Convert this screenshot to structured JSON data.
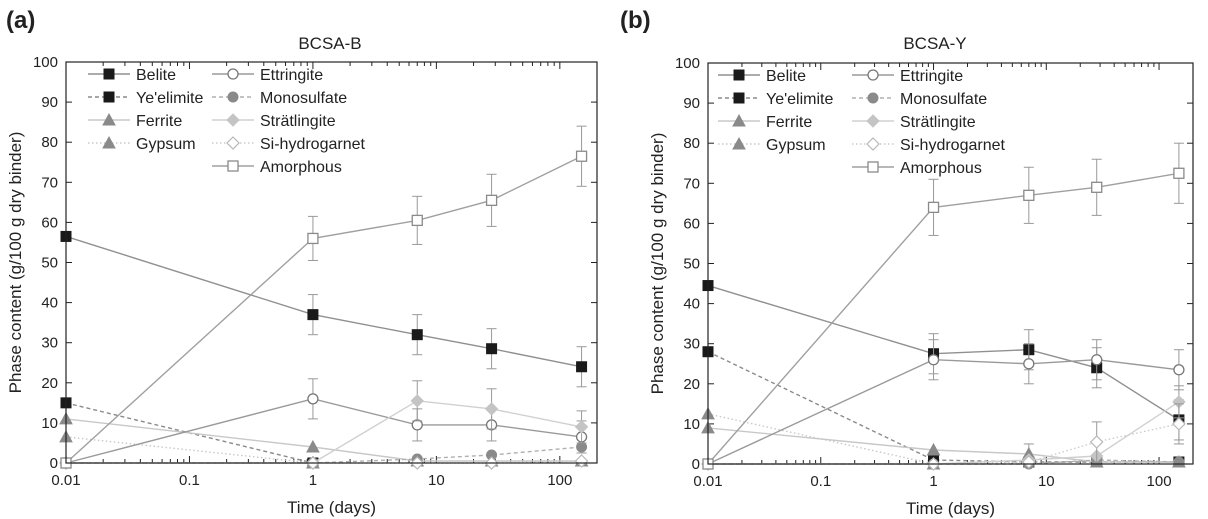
{
  "figure": {
    "ylabel": "Phase content (g/100 g dry binder)",
    "xlabel": "Time (days)"
  },
  "legend_entries": [
    {
      "name": "Belite",
      "marker": "square-filled",
      "dash": "solid",
      "color": "#909090"
    },
    {
      "name": "Ye'elimite",
      "marker": "square-filled",
      "dash": "dashed",
      "color": "#8a8a8a"
    },
    {
      "name": "Ferrite",
      "marker": "triangle-filled",
      "dash": "solid",
      "color": "#c8c8c8"
    },
    {
      "name": "Gypsum",
      "marker": "triangle-filled",
      "dash": "dotted",
      "color": "#c8c8c8"
    },
    {
      "name": "Ettringite",
      "marker": "circle-open",
      "dash": "solid",
      "color": "#9a9a9a"
    },
    {
      "name": "Monosulfate",
      "marker": "circle-filled",
      "dash": "dashed",
      "color": "#b0b0b0"
    },
    {
      "name": "Strätlingite",
      "marker": "diamond-filled",
      "dash": "solid",
      "color": "#d0d0d0"
    },
    {
      "name": "Si-hydrogarnet",
      "marker": "diamond-open",
      "dash": "dotted",
      "color": "#cccccc"
    },
    {
      "name": "Amorphous",
      "marker": "square-open",
      "dash": "solid",
      "color": "#a0a0a0"
    }
  ],
  "chart_data": [
    {
      "panel_label": "(a)",
      "title": "BCSA-B",
      "type": "line",
      "x_scale": "log",
      "xlim": [
        0.01,
        200
      ],
      "ylim": [
        0,
        100
      ],
      "xticks": [
        "0.01",
        "0.1",
        "1",
        "10",
        "100"
      ],
      "xtick_values": [
        0.01,
        0.1,
        1,
        10,
        100
      ],
      "yticks": [
        "0",
        "10",
        "20",
        "30",
        "40",
        "50",
        "60",
        "70",
        "80",
        "90",
        "100"
      ],
      "ytick_values": [
        0,
        10,
        20,
        30,
        40,
        50,
        60,
        70,
        80,
        90,
        100
      ],
      "series": [
        {
          "name": "Belite",
          "x": [
            0.01,
            1,
            7,
            28,
            150
          ],
          "y": [
            56.5,
            37,
            32,
            28.5,
            24
          ],
          "err": [
            0,
            5,
            5,
            5,
            5
          ]
        },
        {
          "name": "Ye'elimite",
          "x": [
            0.01,
            1
          ],
          "y": [
            15,
            0
          ],
          "err": [
            0,
            0
          ]
        },
        {
          "name": "Ferrite",
          "x": [
            0.01,
            1,
            7,
            28,
            150
          ],
          "y": [
            11,
            4,
            0.5,
            0.5,
            0.5
          ],
          "err": [
            0,
            0,
            0,
            0,
            0
          ]
        },
        {
          "name": "Gypsum",
          "x": [
            0.01,
            1
          ],
          "y": [
            6.5,
            0
          ],
          "err": [
            0,
            0
          ]
        },
        {
          "name": "Ettringite",
          "x": [
            0.01,
            1,
            7,
            28,
            150
          ],
          "y": [
            0,
            16,
            9.5,
            9.5,
            6.5
          ],
          "err": [
            0,
            5,
            4,
            4,
            4
          ]
        },
        {
          "name": "Monosulfate",
          "x": [
            0.01,
            1,
            7,
            28,
            150
          ],
          "y": [
            0,
            0,
            1,
            2,
            4
          ],
          "err": [
            0,
            0,
            0,
            0,
            0
          ]
        },
        {
          "name": "Strätlingite",
          "x": [
            0.01,
            1,
            7,
            28,
            150
          ],
          "y": [
            0,
            0,
            15.5,
            13.5,
            9
          ],
          "err": [
            0,
            0,
            5,
            5,
            4
          ]
        },
        {
          "name": "Si-hydrogarnet",
          "x": [
            0.01,
            1,
            7,
            28,
            150
          ],
          "y": [
            0,
            0,
            0,
            0,
            0.5
          ],
          "err": [
            0,
            0,
            0,
            0,
            0
          ]
        },
        {
          "name": "Amorphous",
          "x": [
            0.01,
            1,
            7,
            28,
            150
          ],
          "y": [
            0,
            56,
            60.5,
            65.5,
            76.5
          ],
          "err": [
            0,
            5.5,
            6,
            6.5,
            7.5
          ]
        }
      ]
    },
    {
      "panel_label": "(b)",
      "title": "BCSA-Y",
      "type": "line",
      "x_scale": "log",
      "xlim": [
        0.01,
        200
      ],
      "ylim": [
        0,
        100
      ],
      "xticks": [
        "0.01",
        "0.1",
        "1",
        "10",
        "100"
      ],
      "xtick_values": [
        0.01,
        0.1,
        1,
        10,
        100
      ],
      "yticks": [
        "0",
        "10",
        "20",
        "30",
        "40",
        "50",
        "60",
        "70",
        "80",
        "90",
        "100"
      ],
      "ytick_values": [
        0,
        10,
        20,
        30,
        40,
        50,
        60,
        70,
        80,
        90,
        100
      ],
      "series": [
        {
          "name": "Belite",
          "x": [
            0.01,
            1,
            7,
            28,
            150
          ],
          "y": [
            44.5,
            27.5,
            28.5,
            24,
            11
          ],
          "err": [
            0,
            5,
            5,
            5,
            5
          ]
        },
        {
          "name": "Ye'elimite",
          "x": [
            0.01,
            1,
            7,
            28,
            150
          ],
          "y": [
            28,
            1,
            0.5,
            0.5,
            0.5
          ],
          "err": [
            0,
            0,
            0,
            0,
            0
          ]
        },
        {
          "name": "Ferrite",
          "x": [
            0.01,
            1,
            7,
            28,
            150
          ],
          "y": [
            9,
            3.5,
            2.5,
            0.5,
            0.5
          ],
          "err": [
            0,
            0,
            2.5,
            0,
            0
          ]
        },
        {
          "name": "Gypsum",
          "x": [
            0.01,
            1
          ],
          "y": [
            12.5,
            0
          ],
          "err": [
            0,
            0
          ]
        },
        {
          "name": "Ettringite",
          "x": [
            0.01,
            1,
            7,
            28,
            150
          ],
          "y": [
            0,
            26,
            25,
            26,
            23.5
          ],
          "err": [
            0,
            5,
            5,
            5,
            5
          ]
        },
        {
          "name": "Monosulfate",
          "x": [
            0.01,
            1,
            7,
            28,
            150
          ],
          "y": [
            0,
            0,
            0,
            1,
            0.5
          ],
          "err": [
            0,
            0,
            0,
            0,
            0
          ]
        },
        {
          "name": "Strätlingite",
          "x": [
            0.01,
            1,
            7,
            28,
            150
          ],
          "y": [
            0,
            0,
            1,
            2,
            15.5
          ],
          "err": [
            0,
            0,
            0,
            0,
            4
          ]
        },
        {
          "name": "Si-hydrogarnet",
          "x": [
            0.01,
            1,
            7,
            28,
            150
          ],
          "y": [
            0,
            0,
            0.5,
            5.5,
            10
          ],
          "err": [
            0,
            0,
            0,
            5,
            5
          ]
        },
        {
          "name": "Amorphous",
          "x": [
            0.01,
            1,
            7,
            28,
            150
          ],
          "y": [
            0,
            64,
            67,
            69,
            72.5
          ],
          "err": [
            0,
            7,
            7,
            7,
            7.5
          ]
        }
      ]
    }
  ]
}
